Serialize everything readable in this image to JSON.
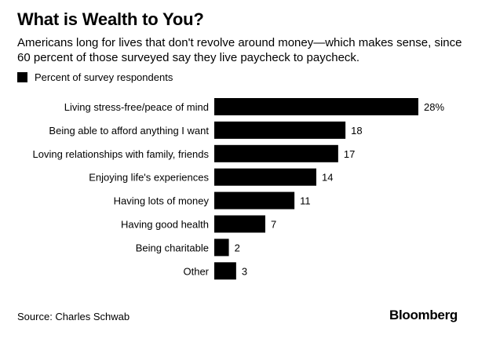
{
  "title": "What is Wealth to You?",
  "subtitle": "Americans long for lives that don't revolve around money—which makes sense, since 60 percent of those surveyed say they live paycheck to paycheck.",
  "legend": {
    "label": "Percent of survey respondents",
    "color": "#000000"
  },
  "source": "Source: Charles Schwab",
  "brand": "Bloomberg",
  "chart_data": {
    "type": "bar",
    "orientation": "horizontal",
    "categories": [
      "Living stress-free/peace of mind",
      "Being able to afford anything I want",
      "Loving relationships with family, friends",
      "Enjoying life's experiences",
      "Having lots of money",
      "Having good health",
      "Being charitable",
      "Other"
    ],
    "values": [
      28,
      18,
      17,
      14,
      11,
      7,
      2,
      3
    ],
    "value_labels": [
      "28%",
      "18",
      "17",
      "14",
      "11",
      "7",
      "2",
      "3"
    ],
    "series": [
      {
        "name": "Percent of survey respondents",
        "values": [
          28,
          18,
          17,
          14,
          11,
          7,
          2,
          3
        ]
      }
    ],
    "xlim": [
      0,
      28
    ],
    "grid": false,
    "legend_position": "top-left",
    "bar_color": "#000000"
  }
}
